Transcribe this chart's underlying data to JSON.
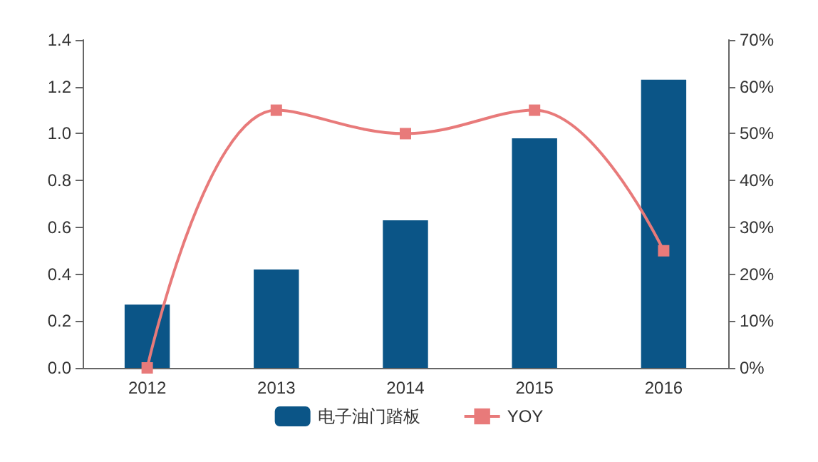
{
  "chart_data": {
    "type": "bar",
    "categories": [
      "2012",
      "2013",
      "2014",
      "2015",
      "2016"
    ],
    "series": [
      {
        "name": "电子油门踏板",
        "color": "#0b5587",
        "values": [
          0.27,
          0.42,
          0.63,
          0.98,
          1.23
        ]
      },
      {
        "name": "YOY",
        "type": "line",
        "axis": "y2",
        "color": "#e87a7a",
        "marker": "square",
        "values": [
          0,
          55,
          50,
          55,
          25
        ]
      }
    ],
    "ylim": [
      0,
      1.4
    ],
    "yticks": [
      {
        "value": 0,
        "label": "0.0"
      },
      {
        "value": 0.2,
        "label": "0.2"
      },
      {
        "value": 0.4,
        "label": "0.4"
      },
      {
        "value": 0.6,
        "label": "0.6"
      },
      {
        "value": 0.8,
        "label": "0.8"
      },
      {
        "value": 1,
        "label": "1.0"
      },
      {
        "value": 1.2,
        "label": "1.2"
      },
      {
        "value": 1.4,
        "label": "1.4"
      }
    ],
    "y2lim": [
      0,
      70
    ],
    "y2ticks": [
      {
        "value": 0,
        "label": "0%"
      },
      {
        "value": 10,
        "label": "10%"
      },
      {
        "value": 20,
        "label": "20%"
      },
      {
        "value": 30,
        "label": "30%"
      },
      {
        "value": 40,
        "label": "40%"
      },
      {
        "value": 50,
        "label": "50%"
      },
      {
        "value": 60,
        "label": "60%"
      },
      {
        "value": 70,
        "label": "70%"
      }
    ],
    "legend": "bottom",
    "grid": false
  }
}
